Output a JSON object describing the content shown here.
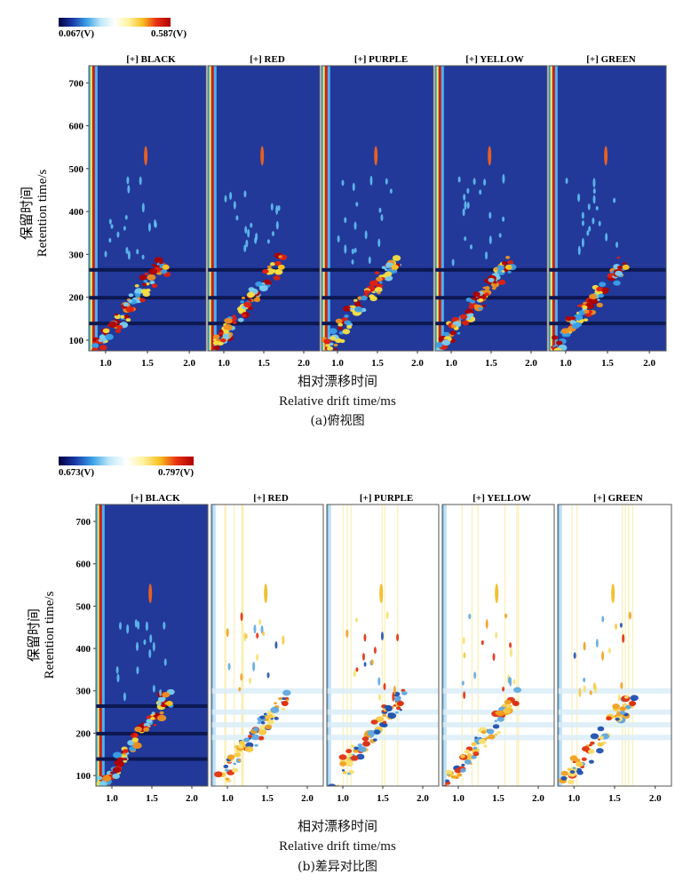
{
  "panels": [
    {
      "caption": "(a)俯视图",
      "scale_min_label": "0.067(V)",
      "scale_max_label": "0.587(V)",
      "colorbar": [
        "#000040",
        "#1a3aa8",
        "#3aa0e8",
        "#bfe8f8",
        "#ffffff",
        "#fff3a0",
        "#f8c020",
        "#e83010",
        "#b00000"
      ],
      "ylabel_cn": "保留时间",
      "ylabel_en": "Retention time/s",
      "xlabel_cn": "相对漂移时间",
      "xlabel_en": "Relative drift time/ms",
      "chart_data": {
        "type": "heatmap",
        "view": "top view",
        "samples": [
          "[+] BLACK",
          "[+] RED",
          "[+] PURPLE",
          "[+] YELLOW",
          "[+] GREEN"
        ],
        "x_ticks": [
          "1.0",
          "1.5",
          "2.0"
        ],
        "y_ticks": [
          "100",
          "200",
          "300",
          "400",
          "500",
          "600",
          "700"
        ],
        "xlim": [
          0.8,
          2.2
        ],
        "ylim": [
          75,
          740
        ],
        "background": "#22399a",
        "difference_mode": false
      }
    },
    {
      "caption": "(b)差异对比图",
      "scale_min_label": "0.673(V)",
      "scale_max_label": "0.797(V)",
      "colorbar": [
        "#000040",
        "#1a3aa8",
        "#3aa0e8",
        "#bfe8f8",
        "#ffffff",
        "#fff3a0",
        "#f8c020",
        "#e83010",
        "#b00000"
      ],
      "ylabel_cn": "保留时间",
      "ylabel_en": "Retention time/s",
      "xlabel_cn": "相对漂移时间",
      "xlabel_en": "Relative drift time/ms",
      "chart_data": {
        "type": "heatmap",
        "view": "difference comparison, reference BLACK",
        "samples": [
          "[+] BLACK",
          "[+] RED",
          "[+] PURPLE",
          "[+] YELLOW",
          "[+] GREEN"
        ],
        "x_ticks": [
          "1.0",
          "1.5",
          "2.0"
        ],
        "y_ticks": [
          "100",
          "200",
          "300",
          "400",
          "500",
          "600",
          "700"
        ],
        "xlim": [
          0.8,
          2.2
        ],
        "ylim": [
          75,
          740
        ],
        "reference_background": "#22399a",
        "difference_background": "#ffffff",
        "difference_mode": true
      }
    }
  ]
}
